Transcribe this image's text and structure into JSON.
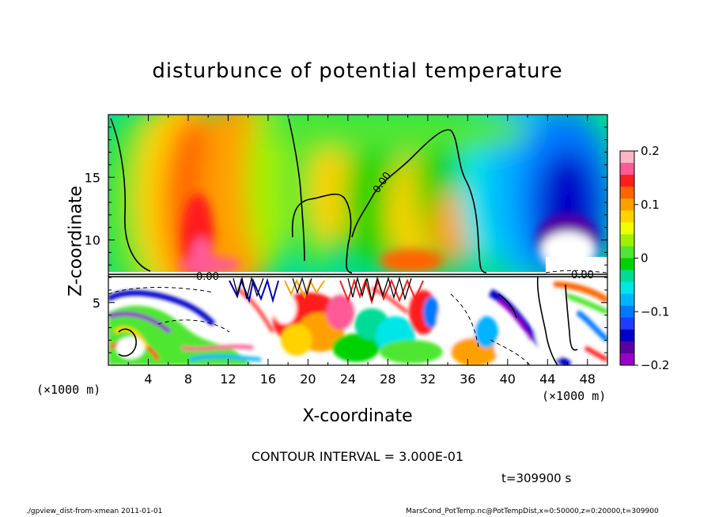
{
  "chart_data": {
    "type": "heatmap",
    "title": "disturbunce of potential temperature",
    "xlabel": "X-coordinate",
    "ylabel": "Z-coordinate",
    "x_unit_left": "(×1000 m)",
    "x_unit_right": "(×1000 m)",
    "xlim": [
      0,
      50
    ],
    "ylim": [
      0,
      20
    ],
    "x_ticks": [
      4,
      8,
      12,
      16,
      20,
      24,
      28,
      32,
      36,
      40,
      44,
      48
    ],
    "y_ticks": [
      5,
      10,
      15
    ],
    "colorbar": {
      "range": [
        -0.2,
        0.2
      ],
      "tick_values": [
        0.2,
        0.1,
        0,
        -0.1,
        -0.2
      ],
      "tick_labels": [
        "0.2",
        "0.1",
        "0",
        "−0.1",
        "−0.2"
      ],
      "colors": [
        "#ffb4c8",
        "#ff5a96",
        "#ff1e1e",
        "#ff6400",
        "#ffa000",
        "#ffd200",
        "#f0ff00",
        "#a0f000",
        "#50e632",
        "#00d200",
        "#00dc96",
        "#00e6e6",
        "#00b4ff",
        "#0078ff",
        "#1e3cff",
        "#0000c8",
        "#5a00a0",
        "#9600c8"
      ]
    },
    "contour_labels": [
      "0.00",
      "0.00",
      "0.00"
    ],
    "contour_interval": "CONTOUR INTERVAL = 3.000E-01",
    "time": "t=309900 s"
  },
  "footer": {
    "left": "./gpview_dist-from-xmean  2011-01-01",
    "right": "MarsCond_PotTemp.nc@PotTempDist,x=0:50000,z=0:20000,t=309900"
  }
}
